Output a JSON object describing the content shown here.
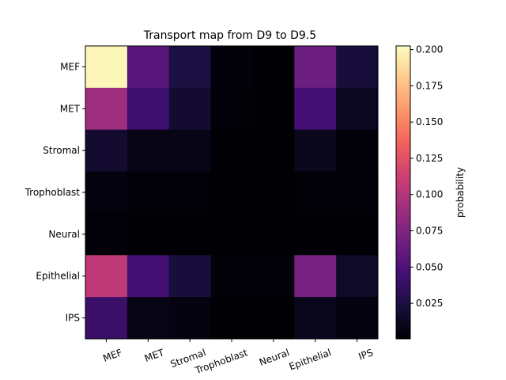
{
  "chart_data": {
    "type": "heatmap",
    "title": "Transport map from D9 to D9.5",
    "xlabel": "",
    "ylabel": "",
    "x_categories": [
      "MEF",
      "MET",
      "Stromal",
      "Trophoblast",
      "Neural",
      "Epithelial",
      "IPS"
    ],
    "y_categories": [
      "MEF",
      "MET",
      "Stromal",
      "Trophoblast",
      "Neural",
      "Epithelial",
      "IPS"
    ],
    "values": [
      [
        0.2,
        0.055,
        0.025,
        0.003,
        0.001,
        0.065,
        0.022
      ],
      [
        0.09,
        0.042,
        0.018,
        0.002,
        0.001,
        0.045,
        0.012
      ],
      [
        0.018,
        0.008,
        0.008,
        0.001,
        0.001,
        0.01,
        0.003
      ],
      [
        0.004,
        0.002,
        0.002,
        0.001,
        0.001,
        0.002,
        0.002
      ],
      [
        0.002,
        0.001,
        0.001,
        0.001,
        0.001,
        0.001,
        0.001
      ],
      [
        0.105,
        0.045,
        0.022,
        0.003,
        0.003,
        0.07,
        0.015
      ],
      [
        0.04,
        0.008,
        0.005,
        0.001,
        0.001,
        0.01,
        0.005
      ]
    ],
    "colormap": "magma",
    "colorbar": {
      "label": "probability",
      "ticks": [
        "0.025",
        "0.050",
        "0.075",
        "0.100",
        "0.125",
        "0.150",
        "0.175",
        "0.200"
      ],
      "range": [
        0.0005,
        0.2025
      ]
    },
    "legend_placement": "right",
    "grid": false
  }
}
